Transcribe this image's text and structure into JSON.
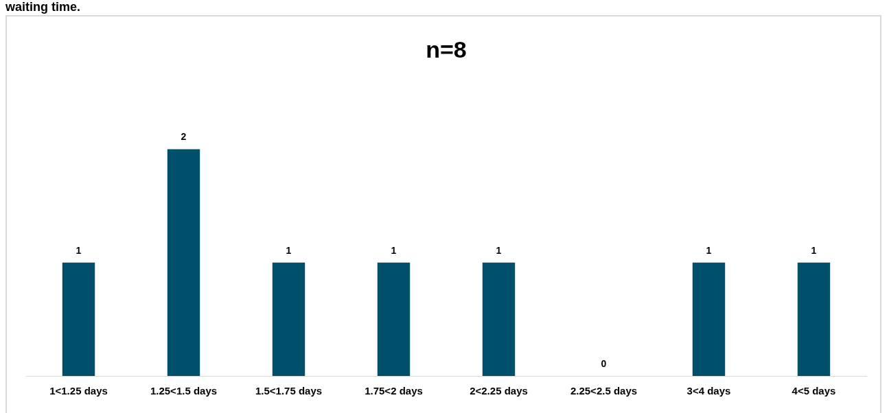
{
  "chart_data": {
    "type": "bar",
    "title": "n=8",
    "annotations": [
      "waiting time."
    ],
    "categories": [
      "1<1.25 days",
      "1.25<1.5 days",
      "1.5<1.75 days",
      "1.75<2 days",
      "2<2.25 days",
      "2.25<2.5 days",
      "3<4 days",
      "4<5 days"
    ],
    "values": [
      1,
      2,
      1,
      1,
      1,
      0,
      1,
      1
    ],
    "color": "#004f6b",
    "data_labels": true,
    "grid": false,
    "legend": false,
    "tick_labels": "x"
  }
}
